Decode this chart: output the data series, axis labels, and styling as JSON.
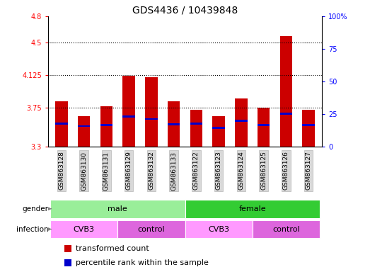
{
  "title": "GDS4436 / 10439848",
  "samples": [
    "GSM863128",
    "GSM863130",
    "GSM863131",
    "GSM863129",
    "GSM863132",
    "GSM863133",
    "GSM863122",
    "GSM863123",
    "GSM863124",
    "GSM863125",
    "GSM863126",
    "GSM863127"
  ],
  "bar_heights": [
    3.82,
    3.65,
    3.77,
    4.12,
    4.1,
    3.82,
    3.73,
    3.65,
    3.86,
    3.75,
    4.57,
    3.73
  ],
  "blue_marker_pos": [
    3.57,
    3.54,
    3.55,
    3.65,
    3.62,
    3.56,
    3.57,
    3.52,
    3.6,
    3.55,
    3.68,
    3.55
  ],
  "bar_bottom": 3.3,
  "ylim_left": [
    3.3,
    4.8
  ],
  "ylim_right": [
    0,
    100
  ],
  "yticks_left": [
    3.3,
    3.75,
    4.125,
    4.5,
    4.8
  ],
  "ytick_labels_left": [
    "3.3",
    "3.75",
    "4.125",
    "4.5",
    "4.8"
  ],
  "yticks_right": [
    0,
    25,
    50,
    75,
    100
  ],
  "ytick_labels_right": [
    "0",
    "25",
    "50",
    "75",
    "100%"
  ],
  "hlines": [
    3.75,
    4.125,
    4.5
  ],
  "bar_color": "#cc0000",
  "blue_color": "#0000cc",
  "bar_width": 0.55,
  "gender_info": [
    [
      0,
      5,
      "male",
      "#99ee99"
    ],
    [
      6,
      11,
      "female",
      "#33cc33"
    ]
  ],
  "infection_info": [
    [
      0,
      2,
      "CVB3",
      "#ff99ff"
    ],
    [
      3,
      5,
      "control",
      "#dd66dd"
    ],
    [
      6,
      8,
      "CVB3",
      "#ff99ff"
    ],
    [
      9,
      11,
      "control",
      "#dd66dd"
    ]
  ],
  "legend_items": [
    "transformed count",
    "percentile rank within the sample"
  ],
  "legend_colors": [
    "#cc0000",
    "#0000cc"
  ],
  "title_fontsize": 10,
  "tick_fontsize": 7,
  "label_fontsize": 7.5,
  "bar_label_fontsize": 6.5
}
